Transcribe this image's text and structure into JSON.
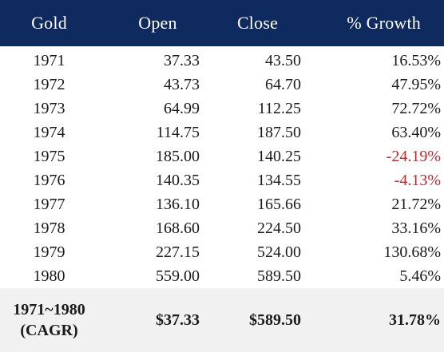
{
  "header": {
    "gold": "Gold",
    "open": "Open",
    "close": "Close",
    "growth": "% Growth"
  },
  "rows": [
    {
      "year": "1971",
      "open": "37.33",
      "close": "43.50",
      "growth": "16.53%",
      "negative": false
    },
    {
      "year": "1972",
      "open": "43.73",
      "close": "64.70",
      "growth": "47.95%",
      "negative": false
    },
    {
      "year": "1973",
      "open": "64.99",
      "close": "112.25",
      "growth": "72.72%",
      "negative": false
    },
    {
      "year": "1974",
      "open": "114.75",
      "close": "187.50",
      "growth": "63.40%",
      "negative": false
    },
    {
      "year": "1975",
      "open": "185.00",
      "close": "140.25",
      "growth": "-24.19%",
      "negative": true
    },
    {
      "year": "1976",
      "open": "140.35",
      "close": "134.55",
      "growth": "-4.13%",
      "negative": true
    },
    {
      "year": "1977",
      "open": "136.10",
      "close": "165.66",
      "growth": "21.72%",
      "negative": false
    },
    {
      "year": "1978",
      "open": "168.60",
      "close": "224.50",
      "growth": "33.16%",
      "negative": false
    },
    {
      "year": "1979",
      "open": "227.15",
      "close": "524.00",
      "growth": "130.68%",
      "negative": false
    },
    {
      "year": "1980",
      "open": "559.00",
      "close": "589.50",
      "growth": "5.46%",
      "negative": false
    }
  ],
  "summary": {
    "label_line1": "1971~1980",
    "label_line2": "(CAGR)",
    "open": "$37.33",
    "close": "$589.50",
    "growth": "31.78%"
  },
  "colors": {
    "header_bg": "#0e2a5e",
    "negative": "#c0272d",
    "summary_bg": "#f1f1f1"
  }
}
